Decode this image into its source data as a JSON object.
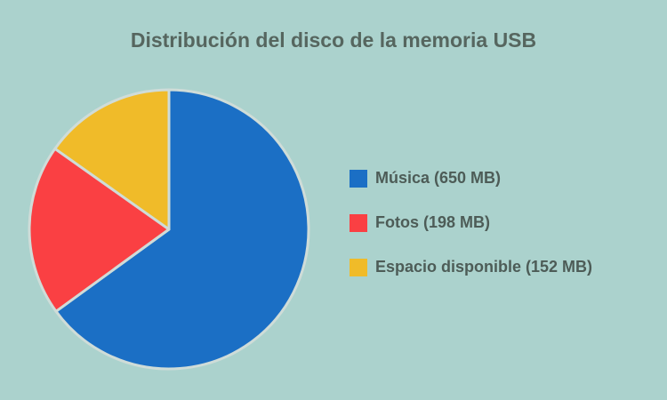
{
  "chart_data": {
    "type": "pie",
    "title": "Distribución del disco de la memoria USB",
    "categories": [
      "Música (650 MB)",
      "Fotos (198 MB)",
      "Espacio disponible (152 MB)"
    ],
    "values": [
      650,
      198,
      152
    ],
    "colors": [
      "#1b6fc5",
      "#fa4043",
      "#f0bb29"
    ]
  }
}
